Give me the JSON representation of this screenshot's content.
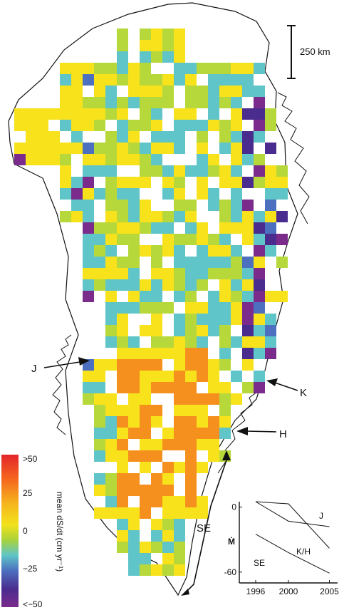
{
  "scale_bar": {
    "label": "250 km"
  },
  "region_labels": {
    "J": "J",
    "K": "K",
    "H": "H",
    "SE": "SE"
  },
  "colorbar": {
    "title": "mean dS/dt (cm yr⁻¹)",
    "ticks": [
      ">50",
      "25",
      "0",
      "−25",
      "<−50"
    ],
    "colors": [
      "#e3262b",
      "#f5901e",
      "#f7e21c",
      "#b7d83a",
      "#5fc5c8",
      "#4c6fbf",
      "#4a2c8f",
      "#7b2b8c"
    ]
  },
  "inset": {
    "y_label": "Ṁ",
    "y_ticks": [
      "0",
      "-60"
    ],
    "x_ticks": [
      "1996",
      "2000",
      "2005"
    ],
    "series_labels": [
      "J",
      "K/H",
      "SE"
    ]
  },
  "chart_data": {
    "type": "line",
    "x": [
      1996,
      2000,
      2005
    ],
    "ylim": [
      -70,
      5
    ],
    "series": [
      {
        "name": "J",
        "values": [
          5,
          -13,
          -18
        ]
      },
      {
        "name": "K/H",
        "values": [
          5,
          3,
          -38
        ]
      },
      {
        "name": "SE",
        "values": [
          -25,
          -42,
          -61
        ]
      }
    ]
  }
}
